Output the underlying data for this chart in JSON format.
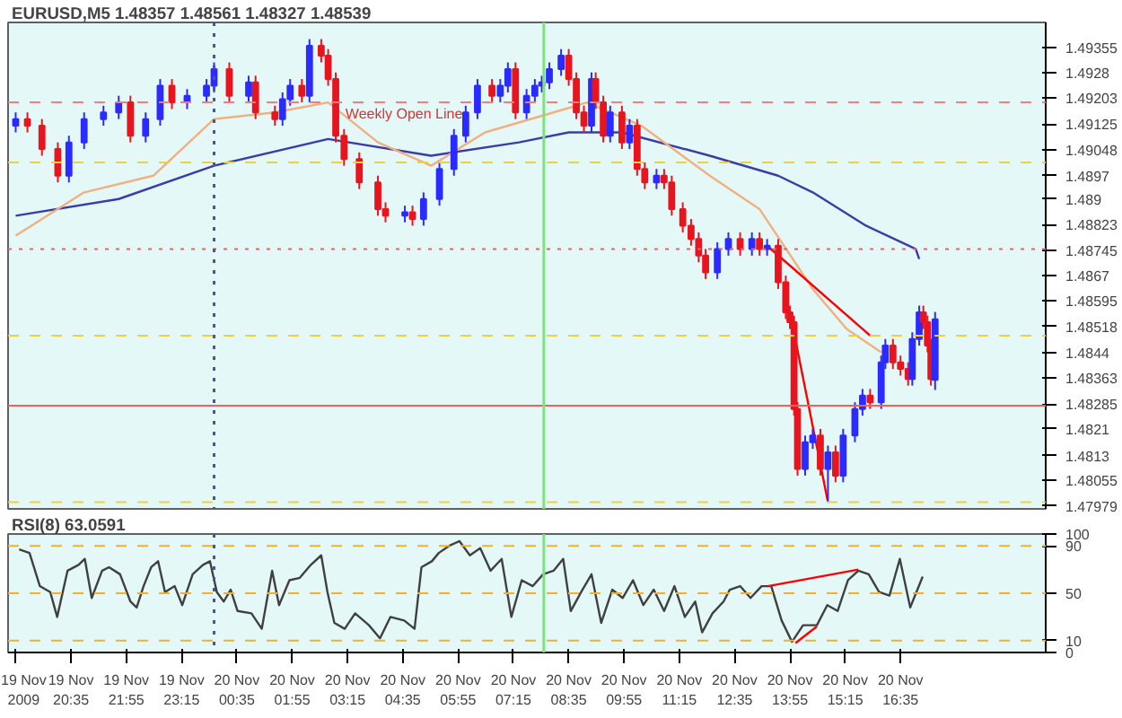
{
  "chart_data": [
    {
      "type": "candlestick",
      "title": "EURUSD,M5  1.48357 1.48561 1.48327 1.48539",
      "xlim": [
        "2009-11-19T19:04",
        "2009-11-20T20:05"
      ],
      "ylim": [
        1.4797,
        1.4943
      ],
      "tick_labels": "y",
      "grid": false,
      "yticks": [
        1.47979,
        1.48055,
        1.4813,
        1.4821,
        1.48285,
        1.48363,
        1.4844,
        1.48518,
        1.48595,
        1.4867,
        1.48745,
        1.48823,
        1.489,
        1.4897,
        1.49048,
        1.49125,
        1.49203,
        1.4928,
        1.49355
      ],
      "series": [
        {
          "type": "line",
          "color": "#3c3ca8",
          "x": [
            "2009-11-19T19:15",
            "2009-11-19T21:44",
            "2009-11-20T00:02",
            "2009-11-20T02:47",
            "2009-11-20T05:16",
            "2009-11-20T07:23",
            "2009-11-20T08:35",
            "2009-11-20T09:52",
            "2009-11-20T11:59",
            "2009-11-20T13:38",
            "2009-11-20T14:28",
            "2009-11-20T15:45",
            "2009-11-20T16:57",
            "2009-11-20T17:02"
          ],
          "values": [
            1.4885,
            1.489,
            1.49,
            1.4908,
            1.4903,
            1.4907,
            1.491,
            1.491,
            1.4903,
            1.4897,
            1.4892,
            1.4882,
            1.4875,
            1.4872
          ]
        },
        {
          "type": "line",
          "color": "#f0b080",
          "x": [
            "2009-11-19T19:15",
            "2009-11-19T20:54",
            "2009-11-19T22:34",
            "2009-11-20T00:02",
            "2009-11-20T01:30",
            "2009-11-20T02:47",
            "2009-11-20T03:59",
            "2009-11-20T05:16",
            "2009-11-20T06:34",
            "2009-11-20T08:13",
            "2009-11-20T09:02",
            "2009-11-20T10:20",
            "2009-11-20T11:59",
            "2009-11-20T13:11",
            "2009-11-20T14:28",
            "2009-11-20T15:17",
            "2009-11-20T16:07"
          ],
          "values": [
            1.4879,
            1.4892,
            1.4897,
            1.4914,
            1.4916,
            1.4919,
            1.4907,
            1.49,
            1.491,
            1.4916,
            1.4919,
            1.4912,
            1.4897,
            1.4887,
            1.4863,
            1.4851,
            1.4844
          ]
        },
        {
          "type": "line",
          "color": "#ff0000",
          "x": [
            "2009-11-20T13:22",
            "2009-11-20T15:51"
          ],
          "values": [
            1.4876,
            1.4849
          ]
        },
        {
          "type": "line",
          "color": "#ff0000",
          "x": [
            "2009-11-20T13:55",
            "2009-11-20T14:50"
          ],
          "values": [
            1.4856,
            1.4799
          ]
        },
        {
          "x": [
            "2009-11-19T19:15",
            "2009-11-19T19:32",
            "2009-11-19T19:53",
            "2009-11-19T20:16",
            "2009-11-19T20:32",
            "2009-11-19T20:54",
            "2009-11-19T21:22",
            "2009-11-19T21:44",
            "2009-11-19T22:01",
            "2009-11-19T22:23",
            "2009-11-19T22:44",
            "2009-11-19T23:01",
            "2009-11-19T23:23",
            "2009-11-19T23:51",
            "2009-11-20T00:02",
            "2009-11-20T00:24",
            "2009-11-20T00:52",
            "2009-11-20T01:02",
            "2009-11-20T01:30",
            "2009-11-20T01:41",
            "2009-11-20T01:52",
            "2009-11-20T02:09",
            "2009-11-20T02:20",
            "2009-11-20T02:37",
            "2009-11-20T02:47",
            "2009-11-20T02:58",
            "2009-11-20T03:10",
            "2009-11-20T03:32",
            "2009-11-20T03:59",
            "2009-11-20T04:10",
            "2009-11-20T04:38",
            "2009-11-20T04:49",
            "2009-11-20T05:05",
            "2009-11-20T05:28",
            "2009-11-20T05:49",
            "2009-11-20T06:06",
            "2009-11-20T06:23",
            "2009-11-20T06:44",
            "2009-11-20T06:56",
            "2009-11-20T07:07",
            "2009-11-20T07:18",
            "2009-11-20T07:34",
            "2009-11-20T07:46",
            "2009-11-20T07:56",
            "2009-11-20T08:07",
            "2009-11-20T08:24",
            "2009-11-20T08:35",
            "2009-11-20T08:46",
            "2009-11-20T08:57",
            "2009-11-20T09:08",
            "2009-11-20T09:14",
            "2009-11-20T09:25",
            "2009-11-20T09:35",
            "2009-11-20T09:52",
            "2009-11-20T10:03",
            "2009-11-20T10:14",
            "2009-11-20T10:25",
            "2009-11-20T10:42",
            "2009-11-20T10:53",
            "2009-11-20T11:04",
            "2009-11-20T11:20",
            "2009-11-20T11:32",
            "2009-11-20T11:43",
            "2009-11-20T11:53",
            "2009-11-20T12:10",
            "2009-11-20T12:26",
            "2009-11-20T12:43",
            "2009-11-20T13:00",
            "2009-11-20T13:11",
            "2009-11-20T13:22",
            "2009-11-20T13:38",
            "2009-11-20T13:49",
            "2009-11-20T13:55",
            "2009-11-20T14:01",
            "2009-11-20T14:06",
            "2009-11-20T14:17",
            "2009-11-20T14:28",
            "2009-11-20T14:39",
            "2009-11-20T14:50",
            "2009-11-20T15:01",
            "2009-11-20T15:12",
            "2009-11-20T15:29",
            "2009-11-20T15:40",
            "2009-11-20T15:51",
            "2009-11-20T16:07",
            "2009-11-20T16:13",
            "2009-11-20T16:24",
            "2009-11-20T16:35",
            "2009-11-20T16:46",
            "2009-11-20T16:52",
            "2009-11-20T17:02",
            "2009-11-20T17:08",
            "2009-11-20T17:14",
            "2009-11-20T17:19",
            "2009-11-20T17:25"
          ],
          "colors": [
            "#2b2bff",
            "#e8141e",
            "#e8141e",
            "#e8141e",
            "#2b2bff",
            "#2b2bff",
            "#2b2bff",
            "#2b2bff",
            "#e8141e",
            "#2b2bff",
            "#2b2bff",
            "#e8141e",
            "#2b2bff",
            "#2b2bff",
            "#2b2bff",
            "#e8141e",
            "#2b2bff",
            "#e8141e",
            "#e8141e",
            "#2b2bff",
            "#2b2bff",
            "#e8141e",
            "#2b2bff",
            "#e8141e",
            "#e8141e",
            "#e8141e",
            "#e8141e",
            "#e8141e",
            "#e8141e",
            "#e8141e",
            "#2b2bff",
            "#e8141e",
            "#2b2bff",
            "#2b2bff",
            "#2b2bff",
            "#2b2bff",
            "#2b2bff",
            "#e8141e",
            "#2b2bff",
            "#2b2bff",
            "#e8141e",
            "#2b2bff",
            "#2b2bff",
            "#2b2bff",
            "#2b2bff",
            "#2b2bff",
            "#e8141e",
            "#e8141e",
            "#e8141e",
            "#2b2bff",
            "#e8141e",
            "#e8141e",
            "#2b2bff",
            "#e8141e",
            "#2b2bff",
            "#e8141e",
            "#e8141e",
            "#2b2bff",
            "#e8141e",
            "#e8141e",
            "#e8141e",
            "#e8141e",
            "#e8141e",
            "#e8141e",
            "#2b2bff",
            "#2b2bff",
            "#e8141e",
            "#2b2bff",
            "#e8141e",
            "#2b2bff",
            "#e8141e",
            "#e8141e",
            "#e8141e",
            "#e8141e",
            "#e8141e",
            "#2b2bff",
            "#2b2bff",
            "#e8141e",
            "#2b2bff",
            "#e8141e",
            "#2b2bff",
            "#2b2bff",
            "#2b2bff",
            "#e8141e",
            "#2b2bff",
            "#2b2bff",
            "#e8141e",
            "#e8141e",
            "#e8141e",
            "#2b2bff",
            "#2b2bff",
            "#e8141e",
            "#e8141e",
            "#e8141e",
            "#2b2bff"
          ],
          "ohlc": [
            [
              1.4912,
              1.4916,
              1.491,
              1.4914
            ],
            [
              1.4914,
              1.4916,
              1.491,
              1.4912
            ],
            [
              1.4912,
              1.4914,
              1.4903,
              1.4905
            ],
            [
              1.4905,
              1.4907,
              1.4895,
              1.4897
            ],
            [
              1.4897,
              1.4909,
              1.4895,
              1.4907
            ],
            [
              1.4907,
              1.4916,
              1.4905,
              1.4914
            ],
            [
              1.4914,
              1.4918,
              1.4912,
              1.4916
            ],
            [
              1.4916,
              1.4921,
              1.4914,
              1.4919
            ],
            [
              1.4919,
              1.4921,
              1.4907,
              1.4909
            ],
            [
              1.4909,
              1.4916,
              1.4907,
              1.4914
            ],
            [
              1.4914,
              1.4926,
              1.4912,
              1.4924
            ],
            [
              1.4924,
              1.4926,
              1.4917,
              1.4919
            ],
            [
              1.4919,
              1.4923,
              1.4917,
              1.4921
            ],
            [
              1.4921,
              1.4926,
              1.4919,
              1.4924
            ],
            [
              1.4924,
              1.4931,
              1.4922,
              1.4929
            ],
            [
              1.4929,
              1.4931,
              1.4919,
              1.4921
            ],
            [
              1.4921,
              1.4927,
              1.4919,
              1.4925
            ],
            [
              1.4925,
              1.4927,
              1.4914,
              1.4916
            ],
            [
              1.4916,
              1.4918,
              1.4912,
              1.4914
            ],
            [
              1.4914,
              1.4922,
              1.4912,
              1.492
            ],
            [
              1.492,
              1.4926,
              1.4918,
              1.4924
            ],
            [
              1.4924,
              1.4926,
              1.4919,
              1.4921
            ],
            [
              1.4921,
              1.4938,
              1.4919,
              1.4936
            ],
            [
              1.4936,
              1.4938,
              1.4931,
              1.4933
            ],
            [
              1.4933,
              1.4935,
              1.4924,
              1.4926
            ],
            [
              1.4926,
              1.4928,
              1.4907,
              1.4909
            ],
            [
              1.4909,
              1.4911,
              1.49,
              1.4902
            ],
            [
              1.4902,
              1.4904,
              1.4893,
              1.4895
            ],
            [
              1.4895,
              1.4897,
              1.4885,
              1.4887
            ],
            [
              1.4887,
              1.4889,
              1.4883,
              1.4885
            ],
            [
              1.4885,
              1.4888,
              1.4883,
              1.4886
            ],
            [
              1.4886,
              1.4888,
              1.4882,
              1.4884
            ],
            [
              1.4884,
              1.4892,
              1.4882,
              1.489
            ],
            [
              1.489,
              1.4901,
              1.4888,
              1.4899
            ],
            [
              1.4899,
              1.4911,
              1.4897,
              1.4909
            ],
            [
              1.4909,
              1.4918,
              1.4907,
              1.4916
            ],
            [
              1.4916,
              1.4926,
              1.4914,
              1.4924
            ],
            [
              1.4924,
              1.4926,
              1.4919,
              1.4921
            ],
            [
              1.4921,
              1.4926,
              1.4919,
              1.4924
            ],
            [
              1.4924,
              1.4931,
              1.4922,
              1.4929
            ],
            [
              1.4929,
              1.4931,
              1.4914,
              1.4916
            ],
            [
              1.4916,
              1.4923,
              1.4914,
              1.4921
            ],
            [
              1.4921,
              1.4926,
              1.4919,
              1.4924
            ],
            [
              1.4924,
              1.4927,
              1.4922,
              1.4925
            ],
            [
              1.4925,
              1.4931,
              1.4923,
              1.4929
            ],
            [
              1.4929,
              1.4935,
              1.4927,
              1.4933
            ],
            [
              1.4933,
              1.4935,
              1.4924,
              1.4926
            ],
            [
              1.4926,
              1.4928,
              1.4914,
              1.4916
            ],
            [
              1.4916,
              1.4918,
              1.491,
              1.4912
            ],
            [
              1.4912,
              1.4928,
              1.491,
              1.4926
            ],
            [
              1.4926,
              1.4928,
              1.4917,
              1.4919
            ],
            [
              1.4919,
              1.4921,
              1.4907,
              1.4909
            ],
            [
              1.4909,
              1.4918,
              1.4907,
              1.4916
            ],
            [
              1.4916,
              1.4918,
              1.4905,
              1.4907
            ],
            [
              1.4907,
              1.4914,
              1.4905,
              1.4912
            ],
            [
              1.4912,
              1.4914,
              1.4897,
              1.4899
            ],
            [
              1.4899,
              1.4901,
              1.4893,
              1.4895
            ],
            [
              1.4895,
              1.4899,
              1.4893,
              1.4897
            ],
            [
              1.4897,
              1.4899,
              1.4893,
              1.4895
            ],
            [
              1.4895,
              1.4897,
              1.4885,
              1.4887
            ],
            [
              1.4887,
              1.4889,
              1.488,
              1.4882
            ],
            [
              1.4882,
              1.4884,
              1.4876,
              1.4878
            ],
            [
              1.4878,
              1.488,
              1.4871,
              1.4873
            ],
            [
              1.4873,
              1.4875,
              1.4866,
              1.4868
            ],
            [
              1.4868,
              1.4877,
              1.4866,
              1.4875
            ],
            [
              1.4875,
              1.488,
              1.4873,
              1.4878
            ],
            [
              1.4878,
              1.488,
              1.4873,
              1.4875
            ],
            [
              1.4875,
              1.488,
              1.4873,
              1.4878
            ],
            [
              1.4878,
              1.488,
              1.4873,
              1.4875
            ],
            [
              1.4875,
              1.4878,
              1.4873,
              1.4876
            ],
            [
              1.4876,
              1.4878,
              1.4863,
              1.4865
            ],
            [
              1.4865,
              1.4867,
              1.4854,
              1.4856
            ],
            [
              1.4856,
              1.4858,
              1.4851,
              1.4853
            ],
            [
              1.4853,
              1.4855,
              1.4825,
              1.4827
            ],
            [
              1.4827,
              1.4829,
              1.4807,
              1.4809
            ],
            [
              1.4809,
              1.4819,
              1.4807,
              1.4817
            ],
            [
              1.4817,
              1.4821,
              1.4815,
              1.4819
            ],
            [
              1.4819,
              1.4821,
              1.4807,
              1.4809
            ],
            [
              1.4809,
              1.4816,
              1.4799,
              1.4814
            ],
            [
              1.4814,
              1.4816,
              1.4805,
              1.4807
            ],
            [
              1.4807,
              1.4821,
              1.4805,
              1.4819
            ],
            [
              1.4819,
              1.4829,
              1.4817,
              1.4827
            ],
            [
              1.4827,
              1.4833,
              1.4825,
              1.4831
            ],
            [
              1.4831,
              1.4833,
              1.4827,
              1.4829
            ],
            [
              1.4829,
              1.4843,
              1.4827,
              1.4841
            ],
            [
              1.4841,
              1.4848,
              1.4839,
              1.4846
            ],
            [
              1.4846,
              1.4848,
              1.4839,
              1.4841
            ],
            [
              1.4841,
              1.4843,
              1.4837,
              1.4839
            ],
            [
              1.4839,
              1.4841,
              1.4834,
              1.4836
            ],
            [
              1.4836,
              1.485,
              1.4834,
              1.4848
            ],
            [
              1.4848,
              1.4858,
              1.4846,
              1.4856
            ],
            [
              1.4856,
              1.4858,
              1.4851,
              1.4853
            ],
            [
              1.4853,
              1.4855,
              1.4844,
              1.4846
            ],
            [
              1.4846,
              1.4848,
              1.4834,
              1.4836
            ],
            [
              1.48357,
              1.48561,
              1.48327,
              1.48539
            ]
          ]
        }
      ],
      "ref_lines": [
        {
          "axis": "y",
          "value": 1.4919,
          "color": "#f08080",
          "line_style": "dashed"
        },
        {
          "axis": "y",
          "value": 1.4901,
          "color": "#f0d040",
          "line_style": "dashed"
        },
        {
          "axis": "y",
          "value": 1.4875,
          "color": "#f06060",
          "line_style": "dotted"
        },
        {
          "axis": "y",
          "value": 1.4849,
          "color": "#f0d040",
          "line_style": "dashed"
        },
        {
          "axis": "y",
          "value": 1.4828,
          "color": "#f06060",
          "line_style": "solid"
        },
        {
          "axis": "y",
          "value": 1.4799,
          "color": "#f0d040",
          "line_style": "dashed"
        },
        {
          "axis": "x",
          "value": "2009-11-20T00:02",
          "color": "#5050a0",
          "line_style": "dotted"
        },
        {
          "axis": "x",
          "value": "2009-11-20T07:59",
          "color": "#80e080",
          "line_style": "solid"
        }
      ],
      "annotations": [
        {
          "text": "Weekly Open Line",
          "x": "2009-11-20T03:12",
          "y": 1.4919
        }
      ]
    },
    {
      "type": "line",
      "title": "RSI(8) 63.0591",
      "xlim": [
        "2009-11-19T19:04",
        "2009-11-20T20:05"
      ],
      "ylim": [
        0,
        100
      ],
      "yticks": [
        0,
        10,
        50,
        90,
        100
      ],
      "grid": false,
      "xticks": [
        {
          "value": "2009-11-19T19:15",
          "label": "19 Nov 2009"
        },
        {
          "value": "2009-11-19T20:35",
          "label": "19 Nov 20:35"
        },
        {
          "value": "2009-11-19T21:55",
          "label": "19 Nov 21:55"
        },
        {
          "value": "2009-11-19T23:15",
          "label": "19 Nov 23:15"
        },
        {
          "value": "2009-11-20T00:35",
          "label": "20 Nov 00:35"
        },
        {
          "value": "2009-11-20T01:55",
          "label": "20 Nov 01:55"
        },
        {
          "value": "2009-11-20T03:15",
          "label": "20 Nov 03:15"
        },
        {
          "value": "2009-11-20T04:35",
          "label": "20 Nov 04:35"
        },
        {
          "value": "2009-11-20T05:55",
          "label": "20 Nov 05:55"
        },
        {
          "value": "2009-11-20T07:15",
          "label": "20 Nov 07:15"
        },
        {
          "value": "2009-11-20T08:35",
          "label": "20 Nov 08:35"
        },
        {
          "value": "2009-11-20T09:55",
          "label": "20 Nov 09:55"
        },
        {
          "value": "2009-11-20T11:15",
          "label": "20 Nov 11:15"
        },
        {
          "value": "2009-11-20T12:35",
          "label": "20 Nov 12:35"
        },
        {
          "value": "2009-11-20T13:55",
          "label": "20 Nov 13:55"
        },
        {
          "value": "2009-11-20T15:15",
          "label": "20 Nov 15:15"
        },
        {
          "value": "2009-11-20T16:35",
          "label": "20 Nov 16:35"
        }
      ],
      "series": [
        {
          "color": "#404040",
          "x": [
            "2009-11-19T19:20",
            "2009-11-19T19:35",
            "2009-11-19T19:50",
            "2009-11-19T20:05",
            "2009-11-19T20:15",
            "2009-11-19T20:30",
            "2009-11-19T20:46",
            "2009-11-19T20:55",
            "2009-11-19T21:05",
            "2009-11-19T21:20",
            "2009-11-19T21:30",
            "2009-11-19T21:46",
            "2009-11-19T22:01",
            "2009-11-19T22:10",
            "2009-11-19T22:20",
            "2009-11-19T22:31",
            "2009-11-19T22:41",
            "2009-11-19T22:51",
            "2009-11-19T23:05",
            "2009-11-19T23:16",
            "2009-11-19T23:31",
            "2009-11-19T23:46",
            "2009-11-19T23:56",
            "2009-11-20T00:06",
            "2009-11-20T00:16",
            "2009-11-20T00:26",
            "2009-11-20T00:36",
            "2009-11-20T00:56",
            "2009-11-20T01:11",
            "2009-11-20T01:26",
            "2009-11-20T01:36",
            "2009-11-20T01:51",
            "2009-11-20T02:06",
            "2009-11-20T02:22",
            "2009-11-20T02:37",
            "2009-11-20T02:46",
            "2009-11-20T02:56",
            "2009-11-20T03:11",
            "2009-11-20T03:26",
            "2009-11-20T03:46",
            "2009-11-20T04:02",
            "2009-11-20T04:17",
            "2009-11-20T04:37",
            "2009-11-20T04:52",
            "2009-11-20T05:02",
            "2009-11-20T05:17",
            "2009-11-20T05:27",
            "2009-11-20T05:42",
            "2009-11-20T05:57",
            "2009-11-20T06:12",
            "2009-11-20T06:27",
            "2009-11-20T06:42",
            "2009-11-20T06:58",
            "2009-11-20T07:12",
            "2009-11-20T07:27",
            "2009-11-20T07:43",
            "2009-11-20T07:58",
            "2009-11-20T08:13",
            "2009-11-20T08:27",
            "2009-11-20T08:38",
            "2009-11-20T08:53",
            "2009-11-20T09:08",
            "2009-11-20T09:22",
            "2009-11-20T09:38",
            "2009-11-20T09:53",
            "2009-11-20T10:08",
            "2009-11-20T10:23",
            "2009-11-20T10:38",
            "2009-11-20T10:53",
            "2009-11-20T11:08",
            "2009-11-20T11:23",
            "2009-11-20T11:38",
            "2009-11-20T11:48",
            "2009-11-20T12:03",
            "2009-11-20T12:19",
            "2009-11-20T12:28",
            "2009-11-20T12:43",
            "2009-11-20T12:58",
            "2009-11-20T13:14",
            "2009-11-20T13:28",
            "2009-11-20T13:43",
            "2009-11-20T13:58",
            "2009-11-20T14:14",
            "2009-11-20T14:34",
            "2009-11-20T14:49",
            "2009-11-20T15:04",
            "2009-11-20T15:19",
            "2009-11-20T15:34",
            "2009-11-20T15:49",
            "2009-11-20T16:04",
            "2009-11-20T16:19",
            "2009-11-20T16:34",
            "2009-11-20T16:49",
            "2009-11-20T17:07"
          ],
          "values": [
            87,
            84,
            56,
            51,
            30,
            69,
            74,
            79,
            46,
            69,
            72,
            66,
            43,
            38,
            56,
            72,
            77,
            51,
            56,
            40,
            66,
            74,
            77,
            51,
            43,
            53,
            35,
            33,
            20,
            69,
            40,
            61,
            63,
            74,
            82,
            51,
            25,
            20,
            33,
            23,
            12,
            30,
            27,
            20,
            72,
            77,
            84,
            90,
            94,
            82,
            88,
            69,
            79,
            30,
            61,
            56,
            66,
            69,
            79,
            35,
            51,
            66,
            25,
            53,
            46,
            61,
            40,
            53,
            35,
            56,
            30,
            43,
            17,
            33,
            43,
            53,
            56,
            46,
            56,
            56,
            27,
            9,
            23,
            23,
            40,
            35,
            61,
            69,
            66,
            51,
            48,
            79,
            38,
            64
          ]
        },
        {
          "color": "#ff0000",
          "x": [
            "2009-11-20T13:23",
            "2009-11-20T15:34"
          ],
          "values": [
            56,
            70
          ]
        },
        {
          "color": "#ff0000",
          "x": [
            "2009-11-20T14:03",
            "2009-11-20T14:34"
          ],
          "values": [
            8,
            22
          ]
        }
      ],
      "ref_lines": [
        {
          "axis": "y",
          "value": 90,
          "color": "#f0b030",
          "line_style": "dashed"
        },
        {
          "axis": "y",
          "value": 50,
          "color": "#f0b030",
          "line_style": "dashed"
        },
        {
          "axis": "y",
          "value": 10,
          "color": "#f0b030",
          "line_style": "dashed"
        },
        {
          "axis": "x",
          "value": "2009-11-20T00:02",
          "color": "#5050a0",
          "line_style": "dotted"
        },
        {
          "axis": "x",
          "value": "2009-11-20T07:59",
          "color": "#80e080",
          "line_style": "solid"
        }
      ]
    }
  ]
}
